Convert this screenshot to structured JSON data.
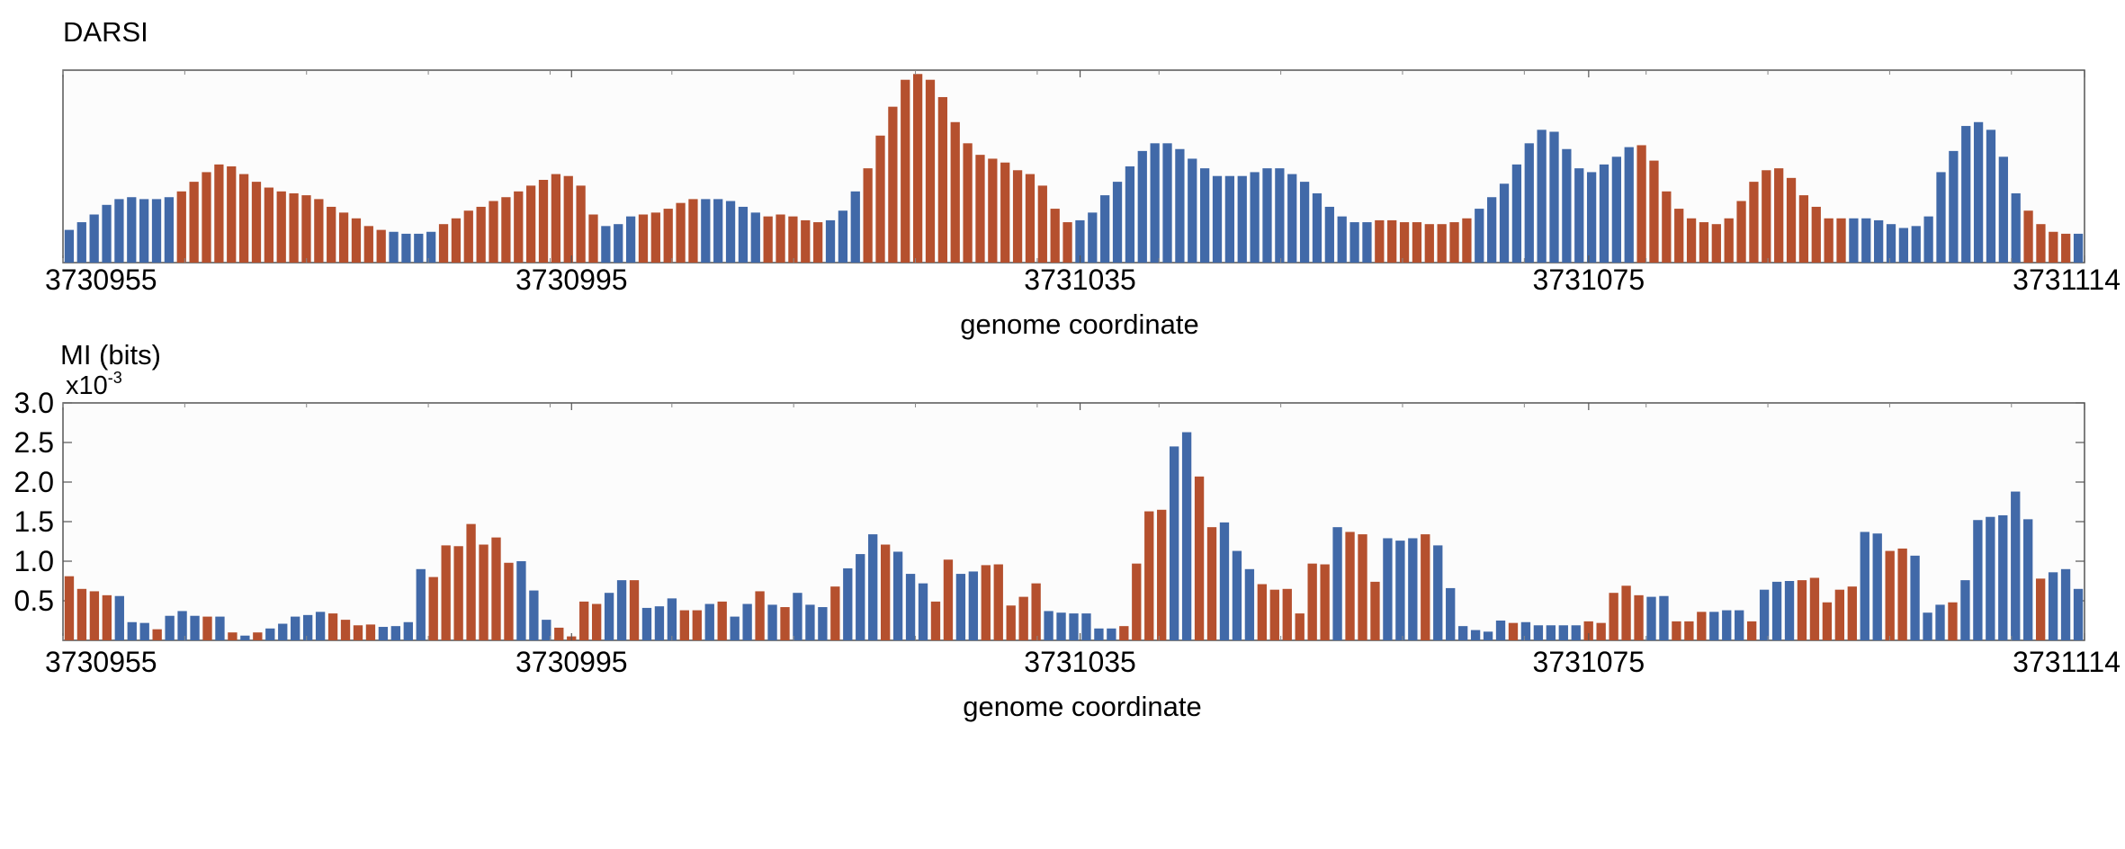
{
  "colors": {
    "blue": "#4169a8",
    "orange": "#b5502e",
    "frame": "#555555",
    "background": "#fcfcfc"
  },
  "chart_data": [
    {
      "type": "bar",
      "title": "DARSI",
      "xlabel": "genome coordinate",
      "ylabel": "",
      "x_range": [
        3730955,
        3731114
      ],
      "xticks": [
        3730955,
        3730995,
        3731035,
        3731075,
        3731114
      ],
      "ylim": [
        0,
        1
      ],
      "yticks_shown": false,
      "grid": false,
      "series": [
        {
          "values": [
            0.17,
            0.21,
            0.25,
            0.3,
            0.33,
            0.34,
            0.33,
            0.33,
            0.34,
            0.37,
            0.42,
            0.47,
            0.51,
            0.5,
            0.46,
            0.42,
            0.39,
            0.37,
            0.36,
            0.35,
            0.33,
            0.29,
            0.26,
            0.23,
            0.19,
            0.17,
            0.16,
            0.15,
            0.15,
            0.16,
            0.2,
            0.23,
            0.27,
            0.29,
            0.32,
            0.34,
            0.37,
            0.4,
            0.43,
            0.46,
            0.45,
            0.4,
            0.25,
            0.19,
            0.2,
            0.24,
            0.25,
            0.26,
            0.28,
            0.31,
            0.33,
            0.33,
            0.33,
            0.32,
            0.29,
            0.26,
            0.24,
            0.25,
            0.24,
            0.22,
            0.21,
            0.22,
            0.27,
            0.37,
            0.49,
            0.66,
            0.81,
            0.95,
            0.98,
            0.95,
            0.86,
            0.73,
            0.62,
            0.56,
            0.54,
            0.52,
            0.48,
            0.46,
            0.4,
            0.28,
            0.21,
            0.22,
            0.26,
            0.35,
            0.42,
            0.5,
            0.58,
            0.62,
            0.62,
            0.59,
            0.54,
            0.49,
            0.45,
            0.45,
            0.45,
            0.47,
            0.49,
            0.49,
            0.46,
            0.42,
            0.36,
            0.29,
            0.24,
            0.21,
            0.21,
            0.22,
            0.22,
            0.21,
            0.21,
            0.2,
            0.2,
            0.21,
            0.23,
            0.28,
            0.34,
            0.41,
            0.51,
            0.62,
            0.69,
            0.68,
            0.59,
            0.49,
            0.47,
            0.51,
            0.55,
            0.6,
            0.61,
            0.53,
            0.37,
            0.28,
            0.23,
            0.21,
            0.2,
            0.23,
            0.32,
            0.42,
            0.48,
            0.49,
            0.44,
            0.35,
            0.29,
            0.23,
            0.23,
            0.23,
            0.23,
            0.22,
            0.2,
            0.18,
            0.19,
            0.24,
            0.47,
            0.58,
            0.71,
            0.73,
            0.69,
            0.55,
            0.36,
            0.27,
            0.2,
            0.16,
            0.15,
            0.15
          ]
        }
      ],
      "bar_color_pattern": [
        "b",
        "b",
        "b",
        "b",
        "b",
        "b",
        "b",
        "b",
        "b",
        "o",
        "o",
        "o",
        "o",
        "o",
        "o",
        "o",
        "o",
        "o",
        "o",
        "o",
        "o",
        "o",
        "o",
        "o",
        "o",
        "o",
        "b",
        "b",
        "b",
        "b",
        "o",
        "o",
        "o",
        "o",
        "o",
        "o",
        "o",
        "o",
        "o",
        "o",
        "o",
        "o",
        "o",
        "b",
        "b",
        "b",
        "o",
        "o",
        "o",
        "o",
        "o",
        "b",
        "b",
        "b",
        "b",
        "b",
        "o",
        "o",
        "o",
        "o",
        "o",
        "b",
        "b",
        "b",
        "o",
        "o",
        "o",
        "o",
        "o",
        "o",
        "o",
        "o",
        "o",
        "o",
        "o",
        "o",
        "o",
        "o",
        "o",
        "o",
        "o",
        "b",
        "b",
        "b",
        "b",
        "b",
        "b",
        "b",
        "b",
        "b",
        "b",
        "b",
        "b",
        "b",
        "b",
        "b",
        "b",
        "b",
        "b",
        "b",
        "b",
        "b",
        "b",
        "b",
        "b",
        "o",
        "o",
        "o",
        "o",
        "o",
        "o",
        "o",
        "o",
        "b",
        "b",
        "b",
        "b",
        "b",
        "b",
        "b",
        "b",
        "b",
        "b",
        "b",
        "b",
        "b",
        "o",
        "o",
        "o",
        "o",
        "o",
        "o",
        "o",
        "o",
        "o",
        "o",
        "o",
        "o",
        "o",
        "o",
        "o",
        "o",
        "o",
        "b",
        "b",
        "b",
        "b",
        "b",
        "b",
        "b",
        "b",
        "b",
        "b",
        "b",
        "b",
        "b",
        "b",
        "o",
        "o",
        "o",
        "o"
      ]
    },
    {
      "type": "bar",
      "title": "MI (bits)",
      "exponent_label": "x10⁻³",
      "xlabel": "genome coordinate",
      "ylabel": "MI (bits)",
      "x_range": [
        3730955,
        3731114
      ],
      "xticks": [
        3730955,
        3730995,
        3731035,
        3731075,
        3731114
      ],
      "ylim": [
        0,
        3.0
      ],
      "yticks": [
        "0.5",
        "1.0",
        "1.5",
        "2.0",
        "2.5",
        "3.0"
      ],
      "grid": false,
      "series": [
        {
          "values": [
            0.81,
            0.65,
            0.62,
            0.57,
            0.56,
            0.23,
            0.22,
            0.14,
            0.31,
            0.37,
            0.31,
            0.3,
            0.3,
            0.1,
            0.06,
            0.1,
            0.15,
            0.21,
            0.3,
            0.32,
            0.36,
            0.34,
            0.26,
            0.19,
            0.2,
            0.17,
            0.18,
            0.23,
            0.9,
            0.8,
            1.2,
            1.19,
            1.47,
            1.21,
            1.3,
            0.98,
            1.0,
            0.63,
            0.26,
            0.16,
            0.05,
            0.49,
            0.46,
            0.6,
            0.76,
            0.76,
            0.41,
            0.43,
            0.53,
            0.38,
            0.38,
            0.46,
            0.49,
            0.3,
            0.46,
            0.62,
            0.45,
            0.42,
            0.6,
            0.45,
            0.42,
            0.68,
            0.91,
            1.09,
            1.34,
            1.21,
            1.12,
            0.84,
            0.72,
            0.49,
            1.02,
            0.84,
            0.87,
            0.95,
            0.96,
            0.44,
            0.55,
            0.72,
            0.37,
            0.35,
            0.34,
            0.34,
            0.15,
            0.15,
            0.18,
            0.97,
            1.63,
            1.65,
            2.45,
            2.63,
            2.07,
            1.43,
            1.49,
            1.13,
            0.9,
            0.71,
            0.64,
            0.65,
            0.34,
            0.97,
            0.96,
            1.43,
            1.37,
            1.34,
            0.74,
            1.29,
            1.26,
            1.29,
            1.34,
            1.2,
            0.66,
            0.18,
            0.13,
            0.11,
            0.25,
            0.22,
            0.23,
            0.19,
            0.19,
            0.19,
            0.19,
            0.24,
            0.22,
            0.6,
            0.69,
            0.57,
            0.55,
            0.56,
            0.24,
            0.24,
            0.36,
            0.36,
            0.38,
            0.38,
            0.24,
            0.64,
            0.74,
            0.75,
            0.76,
            0.79,
            0.48,
            0.64,
            0.68,
            1.37,
            1.35,
            1.13,
            1.16,
            1.07,
            0.35,
            0.45,
            0.48,
            0.76,
            1.52,
            1.56,
            1.58,
            1.88,
            1.53,
            0.78,
            0.86,
            0.9,
            0.65
          ]
        }
      ],
      "bar_color_pattern": [
        "o",
        "o",
        "o",
        "o",
        "b",
        "b",
        "b",
        "o",
        "b",
        "b",
        "b",
        "o",
        "b",
        "o",
        "b",
        "o",
        "b",
        "b",
        "b",
        "b",
        "b",
        "o",
        "o",
        "o",
        "o",
        "b",
        "b",
        "b",
        "b",
        "o",
        "o",
        "o",
        "o",
        "o",
        "o",
        "o",
        "b",
        "b",
        "b",
        "o",
        "o",
        "o",
        "o",
        "b",
        "b",
        "o",
        "b",
        "b",
        "b",
        "o",
        "o",
        "b",
        "o",
        "b",
        "b",
        "o",
        "b",
        "o",
        "b",
        "b",
        "b",
        "o",
        "b",
        "b",
        "b",
        "o",
        "b",
        "b",
        "b",
        "o",
        "o",
        "b",
        "b",
        "o",
        "o",
        "o",
        "o",
        "o",
        "b",
        "b",
        "b",
        "b",
        "b",
        "b",
        "o",
        "o",
        "o",
        "o",
        "b",
        "b",
        "o",
        "o",
        "b",
        "b",
        "b",
        "o",
        "o",
        "o",
        "o",
        "o",
        "o",
        "b",
        "o",
        "o",
        "o",
        "b",
        "b",
        "b",
        "o",
        "b",
        "b",
        "b",
        "b",
        "b",
        "b",
        "o",
        "b",
        "b",
        "b",
        "b",
        "b",
        "o",
        "o",
        "o",
        "o",
        "o",
        "b",
        "b",
        "o",
        "o",
        "o",
        "b",
        "b",
        "b",
        "o",
        "b",
        "b",
        "b",
        "o",
        "o",
        "o",
        "o",
        "o",
        "b",
        "b",
        "o",
        "o",
        "b",
        "b",
        "b",
        "o",
        "b",
        "b",
        "b",
        "b",
        "b",
        "b",
        "o",
        "b",
        "b"
      ]
    }
  ]
}
